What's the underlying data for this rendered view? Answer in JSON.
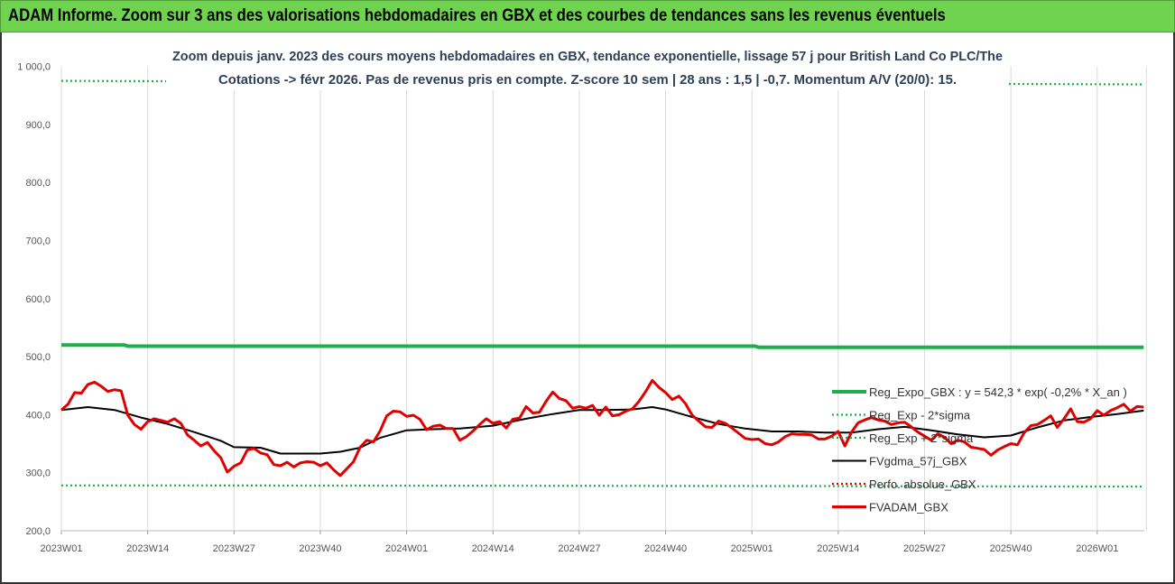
{
  "banner": {
    "title": "ADAM Informe. Zoom sur 3 ans des valorisations hebdomadaires en GBX et des courbes de tendances sans les revenus éventuels",
    "color": "#6fd34f"
  },
  "chart_data": {
    "type": "line",
    "title_line1": "Zoom depuis janv. 2023 des cours moyens hebdomadaires en GBX, tendance exponentielle, lissage 57 j pour British Land Co PLC/The",
    "title_line2": "Cotations -> févr 2026. Pas de revenus pris en compte. Z-score 10 sem | 28 ans : 1,5 | -0,7. Momentum A/V (20/0): 15.",
    "ylim": [
      200,
      1000
    ],
    "y_ticks": [
      "200,0",
      "300,0",
      "400,0",
      "500,0",
      "600,0",
      "700,0",
      "800,0",
      "900,0",
      "1 000,0"
    ],
    "x_tick_labels": [
      "2023W01",
      "2023W14",
      "2023W27",
      "2023W40",
      "2024W01",
      "2024W14",
      "2024W27",
      "2024W40",
      "2025W01",
      "2025W14",
      "2025W27",
      "2025W40",
      "2026W01"
    ],
    "x_tick_weeks": [
      0,
      13,
      26,
      39,
      52,
      65,
      78,
      91,
      104,
      117,
      130,
      143,
      156
    ],
    "grid": "vertical",
    "legend_position": "right",
    "series": [
      {
        "name": "Reg_Expo_GBX : y = 542,3 * exp( -0,2% *  X_an )",
        "color": "#1fae4b",
        "style": "solid-thick",
        "x": [
          0,
          9.5,
          10,
          104.5,
          105,
          163
        ],
        "y": [
          520,
          520,
          518,
          518,
          516,
          516
        ]
      },
      {
        "name": "Reg_Exp - 2*sigma",
        "color": "#1fae4b",
        "style": "dotted",
        "x": [
          0,
          17,
          111,
          163
        ],
        "y": [
          278,
          278,
          277,
          276
        ]
      },
      {
        "name": "Reg_Exp + 2*sigma",
        "color": "#1fae4b",
        "style": "dotted",
        "x": [
          0,
          163
        ],
        "y": [
          975,
          969
        ]
      },
      {
        "name": "FVgdma_57j_GBX",
        "color": "#000000",
        "style": "solid",
        "x": [
          0,
          4,
          8,
          12,
          16,
          20,
          24,
          26,
          30,
          33,
          36,
          39,
          42,
          45,
          48,
          52,
          56,
          60,
          65,
          70,
          74,
          78,
          82,
          86,
          89,
          91,
          95,
          99,
          103,
          107,
          111,
          115,
          119,
          123,
          127,
          131,
          135,
          139,
          143,
          147,
          151,
          155,
          159,
          163
        ],
        "y": [
          408,
          413,
          408,
          395,
          384,
          370,
          355,
          344,
          343,
          333,
          333,
          333,
          336,
          343,
          360,
          373,
          375,
          376,
          381,
          393,
          401,
          408,
          408,
          409,
          413,
          409,
          396,
          384,
          376,
          371,
          371,
          369,
          369,
          375,
          379,
          373,
          366,
          361,
          364,
          378,
          390,
          396,
          401,
          407
        ]
      },
      {
        "name": "Perfo. absolue_GBX",
        "color": "#e00000",
        "style": "dotted",
        "x": [],
        "y": []
      },
      {
        "name": "FVADAM_GBX",
        "color": "#e00000",
        "style": "solid-thick",
        "x": [
          0,
          1,
          2,
          3,
          4,
          5,
          6,
          7,
          8,
          9,
          10,
          11,
          12,
          13,
          14,
          15,
          16,
          17,
          18,
          19,
          20,
          21,
          22,
          23,
          24,
          25,
          26,
          27,
          28,
          29,
          30,
          31,
          32,
          33,
          34,
          35,
          36,
          37,
          38,
          39,
          40,
          41,
          42,
          43,
          44,
          45,
          46,
          47,
          48,
          49,
          50,
          51,
          52,
          53,
          54,
          55,
          56,
          57,
          58,
          59,
          60,
          61,
          62,
          63,
          64,
          65,
          66,
          67,
          68,
          69,
          70,
          71,
          72,
          73,
          74,
          75,
          76,
          77,
          78,
          79,
          80,
          81,
          82,
          83,
          84,
          85,
          86,
          87,
          88,
          89,
          90,
          91,
          92,
          93,
          94,
          95,
          96,
          97,
          98,
          99,
          100,
          101,
          102,
          103,
          104,
          105,
          106,
          107,
          108,
          109,
          110,
          111,
          112,
          113,
          114,
          115,
          116,
          117,
          118,
          119,
          120,
          121,
          122,
          123,
          124,
          125,
          126,
          127,
          128,
          129,
          130,
          131,
          132,
          133,
          134,
          135,
          136,
          137,
          138,
          139,
          140,
          141,
          142,
          143,
          144,
          145,
          146,
          147,
          148,
          149,
          150,
          151,
          152,
          153,
          154,
          155,
          156,
          157,
          158,
          159,
          160,
          161,
          162,
          163
        ],
        "y": [
          408,
          418,
          438,
          437,
          452,
          456,
          449,
          440,
          443,
          441,
          399,
          383,
          375,
          388,
          393,
          390,
          387,
          393,
          385,
          365,
          356,
          346,
          352,
          338,
          326,
          301,
          311,
          317,
          339,
          342,
          334,
          331,
          314,
          312,
          318,
          310,
          317,
          319,
          318,
          312,
          317,
          305,
          295,
          307,
          319,
          344,
          356,
          353,
          372,
          398,
          406,
          405,
          397,
          399,
          392,
          374,
          380,
          382,
          376,
          376,
          356,
          362,
          372,
          383,
          393,
          385,
          388,
          377,
          392,
          394,
          414,
          403,
          404,
          423,
          439,
          428,
          424,
          411,
          414,
          411,
          416,
          399,
          413,
          398,
          400,
          406,
          410,
          423,
          440,
          459,
          447,
          438,
          426,
          432,
          419,
          399,
          389,
          379,
          378,
          389,
          385,
          377,
          368,
          359,
          357,
          358,
          350,
          348,
          353,
          362,
          367,
          366,
          366,
          365,
          358,
          358,
          363,
          371,
          346,
          370,
          386,
          391,
          395,
          391,
          389,
          383,
          386,
          387,
          379,
          370,
          363,
          356,
          367,
          361,
          350,
          356,
          353,
          344,
          342,
          340,
          330,
          339,
          345,
          350,
          348,
          369,
          381,
          383,
          390,
          398,
          378,
          393,
          410,
          388,
          387,
          393,
          407,
          399,
          407,
          412,
          418,
          406,
          414,
          413
        ]
      }
    ]
  }
}
